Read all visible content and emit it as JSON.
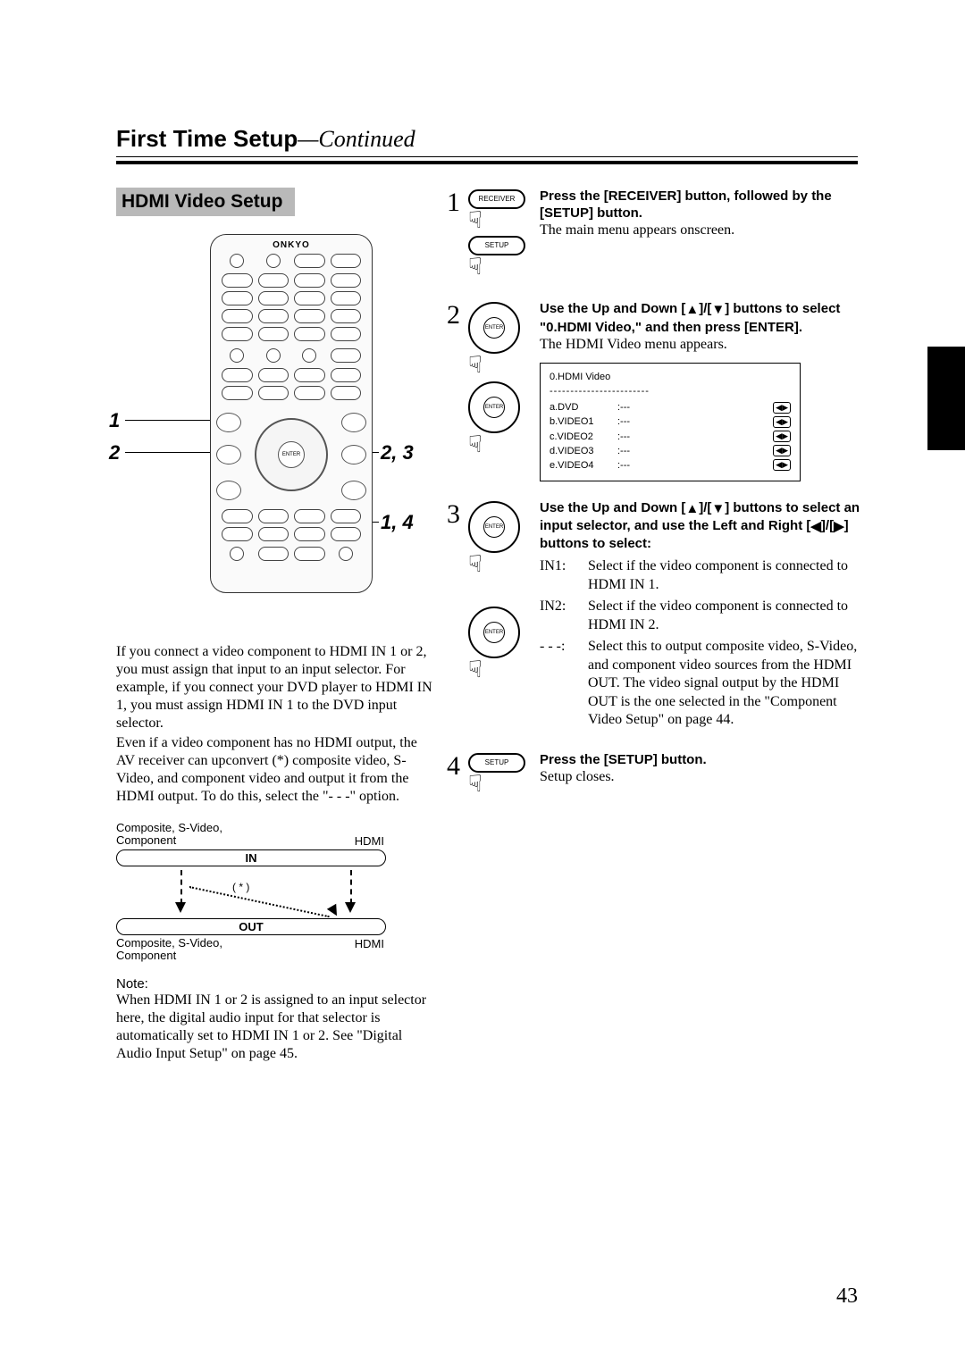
{
  "header": {
    "title_main": "First Time Setup",
    "title_cont": "—Continued"
  },
  "section_title": "HDMI Video Setup",
  "remote": {
    "brand": "ONKYO",
    "callouts": {
      "left1": "1",
      "left2": "2",
      "right_top": "2, 3",
      "right_bot": "1, 4"
    }
  },
  "para1": "If you connect a video component to HDMI IN 1 or 2, you must assign that input to an input selector. For example, if you connect your DVD player to HDMI IN 1, you must assign HDMI IN 1 to the DVD input selector.",
  "para2": "Even if a video component has no HDMI output, the AV receiver can upconvert (*) composite video, S-Video, and component video and output it from the HDMI output. To do this, select the \"- - -\" option.",
  "diagram": {
    "top_left": "Composite, S-Video, Component",
    "top_right": "HDMI",
    "in_label": "IN",
    "out_label": "OUT",
    "star": "( * )",
    "bot_left": "Composite, S-Video, Component",
    "bot_right": "HDMI"
  },
  "note_label": "Note:",
  "note_text": "When HDMI IN 1 or 2 is assigned to an input selector here, the digital audio input for that selector is automatically set to HDMI IN 1 or 2. See \"Digital Audio Input Setup\" on page 45.",
  "steps": {
    "s1": {
      "num": "1",
      "btn1": "RECEIVER",
      "btn2": "SETUP",
      "bold": "Press the [RECEIVER] button, followed by the [SETUP] button.",
      "body": "The main menu appears onscreen."
    },
    "s2": {
      "num": "2",
      "bold_a": "Use the Up and Down [",
      "bold_b": "]/[",
      "bold_c": "] buttons to select \"0.HDMI Video,\" and then press [ENTER].",
      "body": "The HDMI Video menu appears.",
      "menu": {
        "title": "0.HDMI Video",
        "rows": [
          {
            "k": "a.DVD",
            "v": ":---"
          },
          {
            "k": "b.VIDEO1",
            "v": ":---"
          },
          {
            "k": "c.VIDEO2",
            "v": ":---"
          },
          {
            "k": "d.VIDEO3",
            "v": ":---"
          },
          {
            "k": "e.VIDEO4",
            "v": ":---"
          }
        ]
      }
    },
    "s3": {
      "num": "3",
      "bold_a": "Use the Up and Down [",
      "bold_b": "]/[",
      "bold_c": "] buttons to select an input selector, and use the Left and Right [",
      "bold_d": "]/[",
      "bold_e": "] buttons to select:",
      "opts": [
        {
          "tag": "IN1:",
          "txt": "Select if the video component is connected to HDMI IN 1."
        },
        {
          "tag": "IN2:",
          "txt": "Select if the video component is connected to HDMI IN 2."
        },
        {
          "tag": "- - -:",
          "txt": "Select this to output composite video, S-Video, and component video sources from the HDMI OUT. The video signal output by the HDMI OUT is the one selected in the \"Component Video Setup\" on page 44."
        }
      ]
    },
    "s4": {
      "num": "4",
      "btn": "SETUP",
      "bold": "Press the [SETUP] button.",
      "body": "Setup closes."
    }
  },
  "page_num": "43"
}
